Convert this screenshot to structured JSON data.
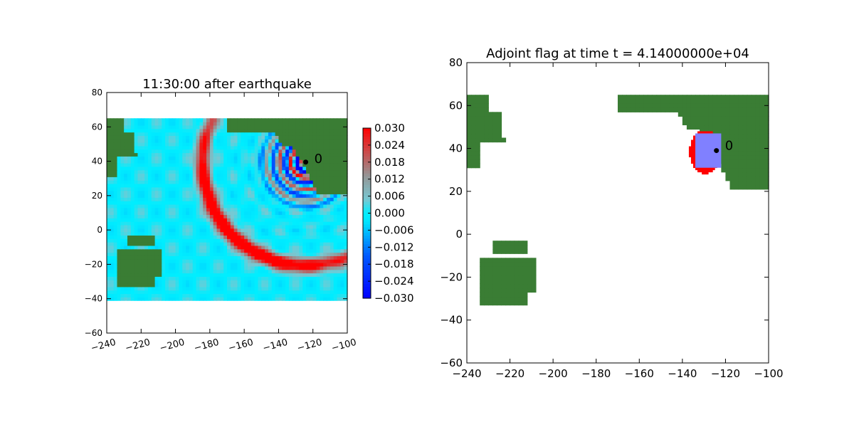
{
  "chart_data": [
    {
      "type": "heatmap",
      "title": "11:30:00 after earthquake",
      "xlabel": "",
      "ylabel": "",
      "xlim": [
        -240,
        -100
      ],
      "ylim": [
        -60,
        80
      ],
      "xticks": [
        -240,
        -220,
        -200,
        -180,
        -160,
        -140,
        -120,
        -100
      ],
      "xtick_labels": [
        "−240",
        "−220",
        "−200",
        "−180",
        "−160",
        "−140",
        "−120",
        "−100"
      ],
      "yticks": [
        -60,
        -40,
        -20,
        0,
        20,
        40,
        60,
        80
      ],
      "ytick_labels": [
        "−60",
        "−40",
        "−20",
        "0",
        "20",
        "40",
        "60",
        "80"
      ],
      "data_extent": {
        "x": [
          -240,
          -100
        ],
        "y": [
          -41,
          65
        ]
      },
      "gauge": {
        "x": -124.2,
        "y": 39.5,
        "label": "0"
      },
      "colorbar": {
        "min": -0.03,
        "max": 0.03,
        "ticks": [
          0.03,
          0.024,
          0.018,
          0.012,
          0.006,
          0.0,
          -0.006,
          -0.012,
          -0.018,
          -0.024,
          -0.03
        ],
        "tick_labels": [
          "0.030",
          "0.024",
          "0.018",
          "0.012",
          "0.006",
          "0.000",
          "−0.006",
          "−0.012",
          "−0.018",
          "−0.024",
          "−0.030"
        ]
      },
      "colors": {
        "land": "#3a7d34",
        "water": "#00eeff",
        "positive": "#ff0000",
        "negative": "#0000ff"
      }
    },
    {
      "type": "heatmap",
      "title": "Adjoint flag at time t = 4.14000000e+04",
      "xlabel": "",
      "ylabel": "",
      "xlim": [
        -240,
        -100
      ],
      "ylim": [
        -60,
        80
      ],
      "xticks": [
        -240,
        -220,
        -200,
        -180,
        -160,
        -140,
        -120,
        -100
      ],
      "xtick_labels": [
        "−240",
        "−220",
        "−200",
        "−180",
        "−160",
        "−140",
        "−120",
        "−100"
      ],
      "yticks": [
        -60,
        -40,
        -20,
        0,
        20,
        40,
        60,
        80
      ],
      "ytick_labels": [
        "−60",
        "−40",
        "−20",
        "0",
        "20",
        "40",
        "60",
        "80"
      ],
      "data_extent": {
        "x": [
          -240,
          -100
        ],
        "y": [
          -41,
          65
        ]
      },
      "gauge": {
        "x": -124.2,
        "y": 39.0,
        "label": "0"
      },
      "flagged_region": {
        "x": [
          -137,
          -123
        ],
        "y": [
          28,
          48
        ]
      },
      "colors": {
        "land": "#3a7d34",
        "flag": "#ff0000",
        "region": "#8080ff"
      }
    }
  ]
}
